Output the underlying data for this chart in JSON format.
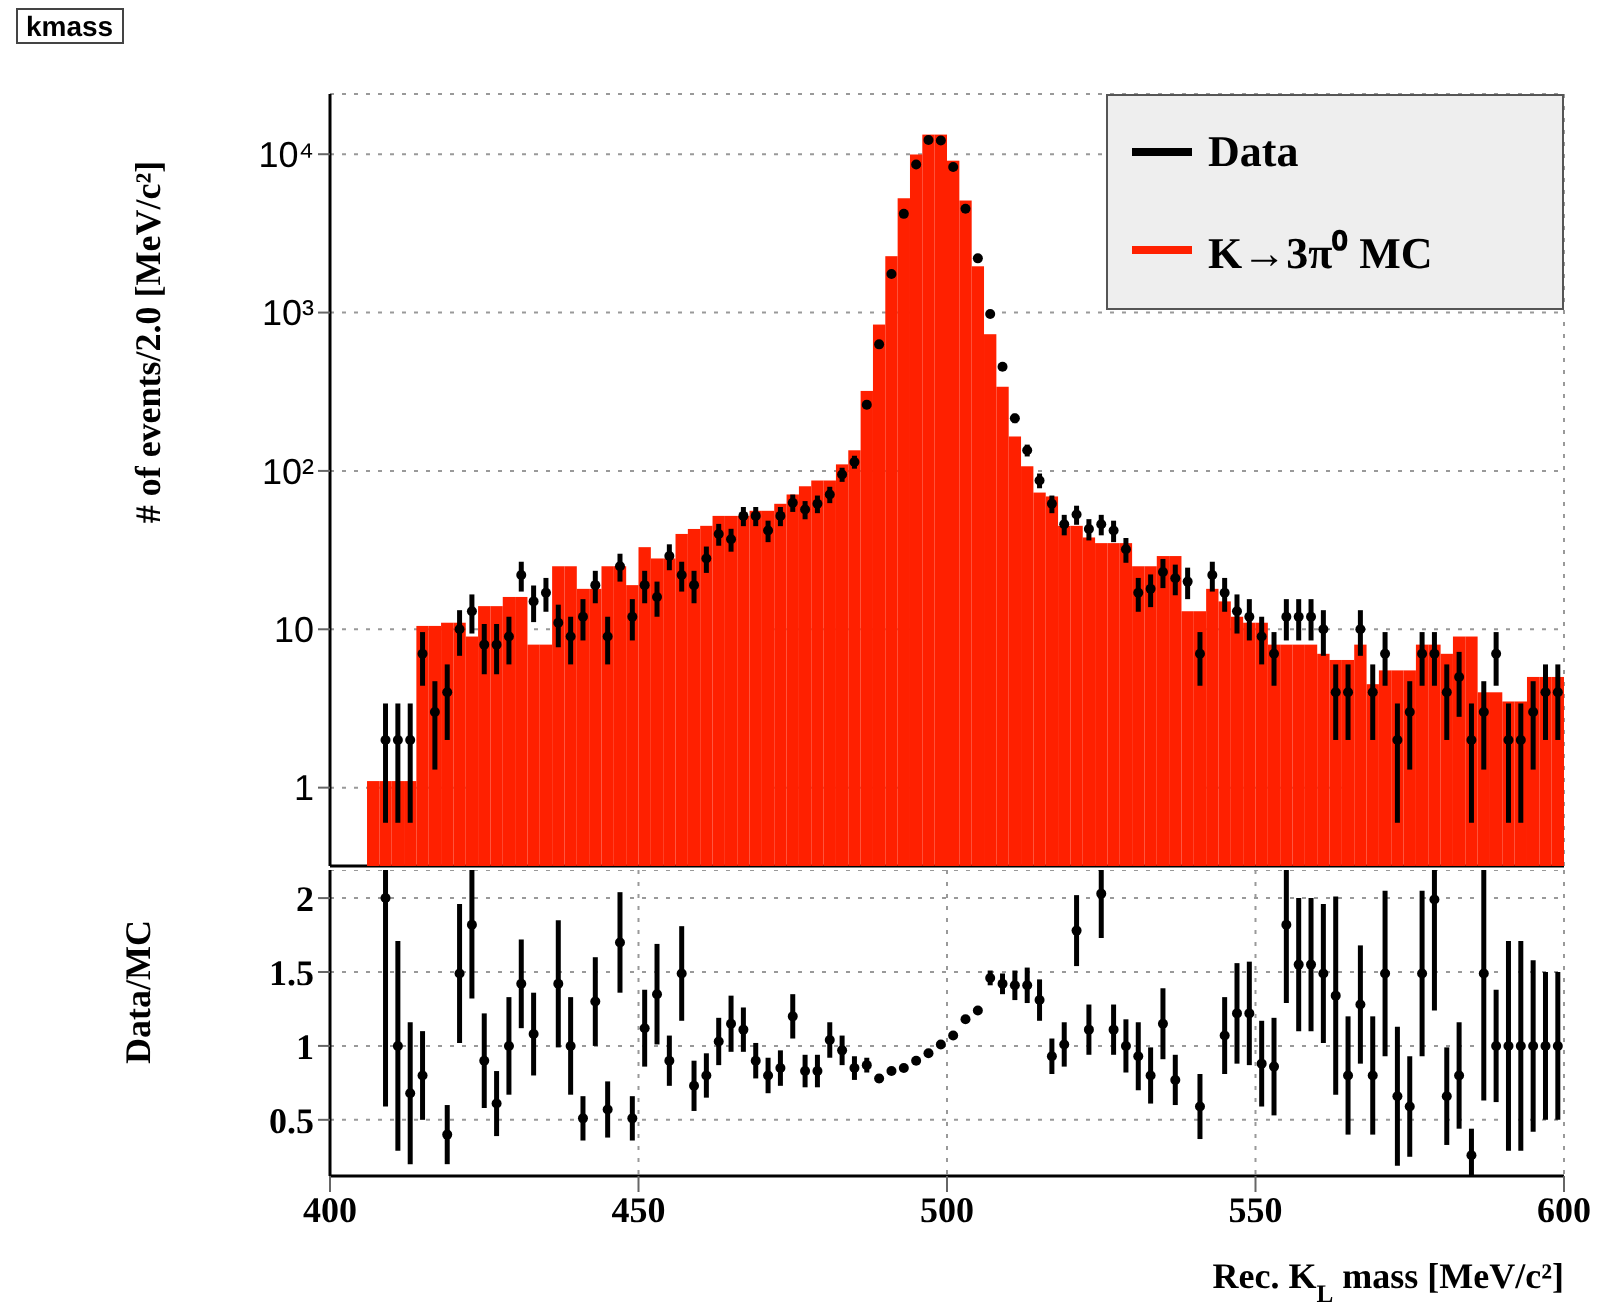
{
  "chart_data": [
    {
      "type": "histogram",
      "title": "kmass",
      "ylabel": "# of events/2.0 [MeV/c²]",
      "log": "y",
      "grid": true,
      "legend": "top right",
      "tick_labels": "y",
      "marker": "circle",
      "xlim": [
        400,
        600
      ],
      "xticks": [
        400,
        450,
        500,
        550,
        600
      ],
      "ylim": [
        0.32,
        24000
      ],
      "yticks": [
        1,
        10,
        {
          "value": 100,
          "label": "10²"
        },
        {
          "value": 1000,
          "label": "10³"
        },
        {
          "value": 10000,
          "label": "10⁴"
        }
      ],
      "bins": [
        400,
        402,
        404,
        406,
        408,
        410,
        412,
        414,
        416,
        418,
        420,
        422,
        424,
        426,
        428,
        430,
        432,
        434,
        436,
        438,
        440,
        442,
        444,
        446,
        448,
        450,
        452,
        454,
        456,
        458,
        460,
        462,
        464,
        466,
        468,
        470,
        472,
        474,
        476,
        478,
        480,
        482,
        484,
        486,
        488,
        490,
        492,
        494,
        496,
        498,
        500,
        502,
        504,
        506,
        508,
        510,
        512,
        514,
        516,
        518,
        520,
        522,
        524,
        526,
        528,
        530,
        532,
        534,
        536,
        538,
        540,
        542,
        544,
        546,
        548,
        550,
        552,
        554,
        556,
        558,
        560,
        562,
        564,
        566,
        568,
        570,
        572,
        574,
        576,
        578,
        580,
        582,
        584,
        586,
        588,
        590,
        592,
        594,
        596,
        598,
        600
      ],
      "series": [
        {
          "name": "Data",
          "type": "scatter",
          "color": "#000000",
          "x": [
            409,
            411,
            413,
            415,
            417,
            419,
            421,
            423,
            425,
            427,
            429,
            431,
            433,
            435,
            437,
            439,
            441,
            443,
            445,
            447,
            449,
            451,
            453,
            455,
            457,
            459,
            461,
            463,
            465,
            467,
            469,
            471,
            473,
            475,
            477,
            479,
            481,
            483,
            485,
            487,
            489,
            491,
            493,
            495,
            497,
            499,
            501,
            503,
            505,
            507,
            509,
            511,
            513,
            515,
            517,
            519,
            521,
            523,
            525,
            527,
            529,
            531,
            533,
            535,
            537,
            539,
            541,
            543,
            545,
            547,
            549,
            551,
            553,
            555,
            557,
            559,
            561,
            563,
            565,
            567,
            569,
            571,
            573,
            575,
            577,
            579,
            581,
            583,
            585,
            587,
            589,
            591,
            593,
            595,
            597,
            599
          ],
          "values": [
            2,
            2,
            2,
            7,
            3,
            4,
            10,
            13,
            8,
            8,
            9,
            22,
            15,
            17,
            11,
            9,
            12,
            19,
            9,
            25,
            12,
            19,
            16,
            29,
            22,
            19,
            28,
            40,
            37,
            52,
            52,
            42,
            52,
            63,
            57,
            62,
            71,
            95,
            114,
            262,
            630,
            1750,
            4200,
            8600,
            12300,
            12200,
            8300,
            4530,
            2200,
            980,
            455,
            215,
            135,
            87,
            62,
            46,
            53,
            43,
            46,
            42,
            32,
            17,
            18,
            23,
            21,
            20,
            7,
            22,
            17,
            13,
            12,
            9,
            7,
            12,
            12,
            12,
            10,
            4,
            4,
            10,
            4,
            7,
            2,
            3,
            7,
            7,
            4,
            5,
            2,
            3,
            7,
            2,
            2,
            3,
            4,
            4
          ],
          "errors": [
            1.4,
            1.4,
            1.4,
            2.6,
            1.7,
            2,
            3.2,
            3.6,
            2.8,
            2.8,
            3,
            4.7,
            3.9,
            4.1,
            3.3,
            3,
            3.5,
            4.4,
            3,
            5,
            3.5,
            4.4,
            4,
            5.4,
            4.7,
            4.4,
            5.3,
            6.3,
            6.1,
            7.2,
            7.2,
            6.5,
            7.2,
            7.9,
            7.5,
            7.9,
            8.4,
            9.7,
            10.7,
            16.2,
            25.1,
            41.8,
            64.8,
            null,
            null,
            null,
            91.1,
            67.3,
            46.9,
            31.3,
            21.3,
            14.7,
            11.6,
            9.3,
            7.9,
            6.8,
            7.3,
            6.6,
            6.8,
            6.5,
            5.7,
            4.1,
            4.2,
            4.8,
            4.6,
            4.5,
            2.6,
            4.7,
            4.1,
            3.6,
            3.5,
            3,
            2.6,
            3.5,
            3.5,
            3.5,
            3.2,
            2,
            2,
            3.2,
            2,
            2.6,
            1.4,
            1.7,
            2.6,
            2.6,
            2,
            2.2,
            1.4,
            1.7,
            2.6,
            1.4,
            1.4,
            1.7,
            2,
            2
          ]
        },
        {
          "name": "K→3π⁰ MC",
          "type": "histogram",
          "color": "#ff2000",
          "values": [
            null,
            null,
            null,
            1.1,
            1.1,
            1.1,
            1.1,
            10.5,
            10.5,
            11,
            11,
            9,
            14,
            14,
            16,
            16,
            8,
            8,
            25,
            25,
            18,
            18,
            25,
            25,
            19,
            33,
            28,
            28,
            40,
            43,
            45,
            52,
            52,
            52,
            56,
            56,
            62,
            71,
            80,
            87,
            87,
            110,
            135,
            320,
            840,
            2270,
            5270,
            9960,
            13300,
            13300,
            9100,
            5100,
            1960,
            730,
            340,
            165,
            107,
            73,
            69,
            45,
            45,
            38,
            35,
            35,
            35,
            25,
            25,
            29,
            29,
            13,
            13,
            18,
            15,
            12,
            11,
            11,
            8,
            8,
            8,
            8,
            7,
            6.4,
            6.4,
            8,
            4.5,
            5.5,
            5.5,
            5.5,
            8,
            8,
            7,
            9,
            9,
            4,
            4,
            3.5,
            3.5,
            5,
            5,
            5
          ]
        }
      ]
    },
    {
      "type": "scatter",
      "xlabel": "Rec. K$_{L}$ mass [MeV/c²]",
      "ylabel": "Data/MC",
      "grid": true,
      "marker": "circle",
      "color": "#000000",
      "xlim": [
        400,
        600
      ],
      "xticks": [
        400,
        450,
        500,
        550,
        600
      ],
      "ylim": [
        0.12,
        2.19
      ],
      "yticks": [
        0.5,
        1,
        1.5,
        2
      ],
      "x": [
        409,
        411,
        413,
        415,
        419,
        421,
        423,
        425,
        427,
        429,
        431,
        433,
        437,
        439,
        441,
        443,
        445,
        447,
        449,
        451,
        453,
        455,
        457,
        459,
        461,
        463,
        465,
        467,
        469,
        471,
        473,
        475,
        477,
        479,
        481,
        483,
        485,
        487,
        489,
        491,
        493,
        495,
        497,
        499,
        501,
        503,
        505,
        507,
        509,
        511,
        513,
        515,
        517,
        519,
        521,
        523,
        525,
        527,
        529,
        531,
        533,
        535,
        537,
        541,
        545,
        547,
        549,
        551,
        553,
        555,
        557,
        559,
        561,
        563,
        565,
        567,
        569,
        571,
        573,
        575,
        577,
        579,
        581,
        583,
        585,
        587,
        589,
        591,
        593,
        595,
        597,
        599
      ],
      "values": [
        2.0,
        1.0,
        0.68,
        0.8,
        0.4,
        1.49,
        1.82,
        0.9,
        0.61,
        1.0,
        1.42,
        1.08,
        1.42,
        1.0,
        0.51,
        1.3,
        0.57,
        1.7,
        0.51,
        1.12,
        1.35,
        0.9,
        1.49,
        0.73,
        0.8,
        1.03,
        1.15,
        1.11,
        0.9,
        0.8,
        0.85,
        1.2,
        0.83,
        0.83,
        1.04,
        0.97,
        0.85,
        0.87,
        0.78,
        0.83,
        0.85,
        0.9,
        0.95,
        1.01,
        1.07,
        1.18,
        1.24,
        1.46,
        1.42,
        1.41,
        1.41,
        1.31,
        0.93,
        1.01,
        1.78,
        1.11,
        2.03,
        1.11,
        1.0,
        0.93,
        0.8,
        1.15,
        0.77,
        0.59,
        1.07,
        1.22,
        1.22,
        0.88,
        0.86,
        1.82,
        1.55,
        1.55,
        1.49,
        1.34,
        0.8,
        1.28,
        0.8,
        1.49,
        0.66,
        0.59,
        1.49,
        1.99,
        0.66,
        0.8,
        0.26,
        1.49,
        1.0,
        1.0,
        1.0,
        1.0,
        1.0,
        1.0
      ],
      "errors": [
        [
          0.59,
          2.19
        ],
        [
          0.29,
          1.71
        ],
        [
          0.2,
          1.16
        ],
        0.3,
        0.2,
        0.47,
        [
          1.32,
          2.19
        ],
        0.32,
        0.22,
        0.33,
        0.3,
        0.28,
        0.43,
        0.33,
        0.15,
        0.3,
        0.19,
        0.34,
        0.15,
        0.26,
        0.34,
        0.17,
        0.32,
        0.17,
        0.15,
        0.16,
        0.19,
        0.15,
        0.12,
        0.12,
        0.12,
        0.15,
        0.11,
        0.11,
        0.12,
        0.1,
        0.08,
        0.05,
        0.03,
        0.02,
        0.02,
        0.02,
        0.02,
        0.02,
        0.02,
        0.02,
        0.02,
        0.05,
        0.07,
        0.1,
        0.12,
        0.14,
        0.12,
        0.15,
        0.24,
        0.17,
        [
          1.73,
          2.19
        ],
        0.17,
        0.18,
        0.23,
        0.19,
        0.24,
        0.17,
        0.22,
        0.26,
        0.34,
        0.35,
        0.29,
        0.33,
        [
          1.29,
          2.19
        ],
        0.45,
        0.45,
        0.47,
        [
          0.67,
          2.01
        ],
        0.4,
        0.4,
        0.4,
        0.56,
        0.47,
        0.34,
        0.56,
        [
          1.24,
          2.19
        ],
        0.33,
        0.36,
        [
          0.12,
          0.44
        ],
        [
          0.63,
          2.19
        ],
        0.38,
        0.71,
        0.71,
        0.58,
        0.5,
        0.5
      ]
    }
  ]
}
